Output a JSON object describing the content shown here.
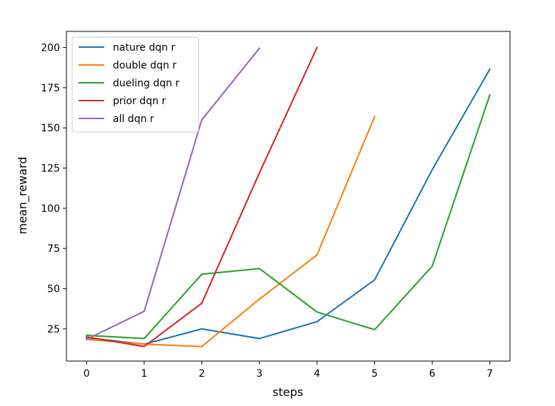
{
  "chart_data": {
    "type": "line",
    "title": "",
    "xlabel": "steps",
    "ylabel": "mean_reward",
    "xlim": [
      -0.35,
      7.35
    ],
    "ylim": [
      5,
      210
    ],
    "xticks": [
      0,
      1,
      2,
      3,
      4,
      5,
      6,
      7
    ],
    "yticks": [
      25,
      50,
      75,
      100,
      125,
      150,
      175,
      200
    ],
    "grid": false,
    "legend_position": "top-left",
    "series": [
      {
        "name": "nature dqn r",
        "color": "#1f77b4",
        "x": [
          0,
          1,
          2,
          3,
          4,
          5,
          6,
          7
        ],
        "y": [
          19.5,
          15.5,
          25,
          19,
          29.5,
          55.5,
          124,
          186.5
        ]
      },
      {
        "name": "double dqn r",
        "color": "#ff7f0e",
        "x": [
          0,
          1,
          2,
          3,
          4,
          5
        ],
        "y": [
          18.5,
          15.5,
          14,
          43.5,
          71,
          157
        ]
      },
      {
        "name": "dueling dqn r",
        "color": "#2ca02c",
        "x": [
          0,
          1,
          2,
          3,
          4,
          5,
          6,
          7
        ],
        "y": [
          21,
          19,
          59,
          62.5,
          35.5,
          24.5,
          64,
          170.5
        ]
      },
      {
        "name": "prior dqn r",
        "color": "#d62728",
        "x": [
          0,
          1,
          2,
          3,
          4
        ],
        "y": [
          20,
          14,
          41,
          122,
          200
        ]
      },
      {
        "name": "all dqn r",
        "color": "#9467bd",
        "x": [
          0,
          1,
          2,
          3
        ],
        "y": [
          18.5,
          36,
          155,
          199.5
        ]
      }
    ]
  }
}
